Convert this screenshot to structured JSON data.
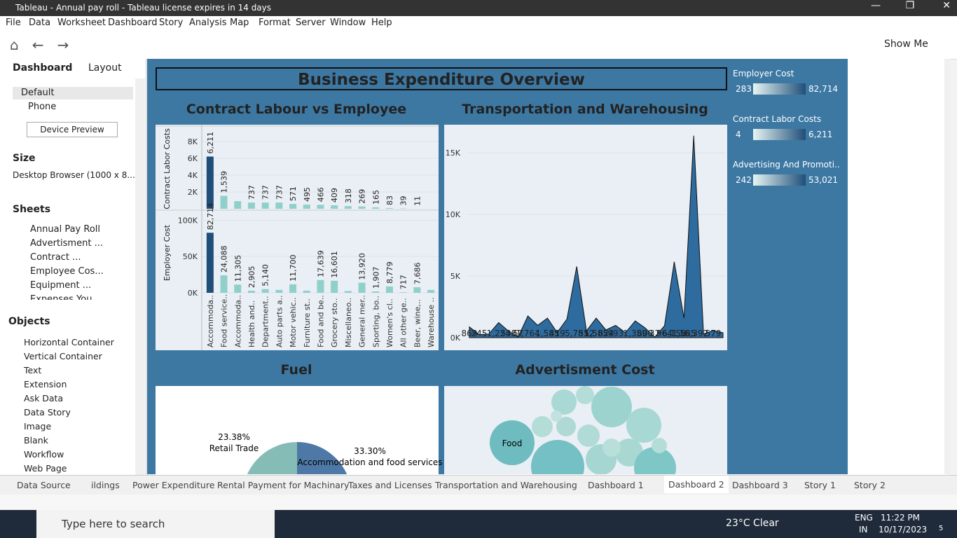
{
  "window_title": "Tableau - Annual pay roll - Tableau license expires in 14 days",
  "menu": [
    "File",
    "Data",
    "Worksheet",
    "Dashboard",
    "Story",
    "Analysis",
    "Map",
    "Format",
    "Server",
    "Window",
    "Help"
  ],
  "toolbar": {
    "show_me": "Show Me"
  },
  "left_panel": {
    "tabs": [
      "Dashboard",
      "Layout"
    ],
    "devices": [
      "Default",
      "Phone"
    ],
    "device_preview": "Device Preview",
    "size_heading": "Size",
    "size_value": "Desktop Browser (1000 x 8...",
    "sheets_heading": "Sheets",
    "sheets": [
      "Annual Pay Roll",
      "Advertisment ...",
      "Contract ...",
      "Employee Cos...",
      "Equipment ...",
      "Expenses You..."
    ],
    "objects_heading": "Objects",
    "objects": [
      "Horizontal Container",
      "Vertical Container",
      "Text",
      "Extension",
      "Ask Data",
      "Data Story",
      "Image",
      "Blank",
      "Workflow",
      "Web Page"
    ]
  },
  "dashboard": {
    "title": "Business Expenditure Overview",
    "legends": [
      {
        "title": "Employer Cost",
        "min": "283",
        "max": "82,714"
      },
      {
        "title": "Contract Labor Costs",
        "min": "4",
        "max": "6,211"
      },
      {
        "title": "Advertising And Promoti..",
        "min": "242",
        "max": "53,021"
      }
    ],
    "contract_employee": {
      "type": "bar",
      "title": "Contract Labour vs Employee",
      "categories": [
        "Accommoda..",
        "Food service..",
        "Accommoda..",
        "Health and..",
        "Department..",
        "Auto parts a..",
        "Motor vehic..",
        "Furniture st..",
        "Food and be..",
        "Grocery sto..",
        "Miscellaneo..",
        "General mer..",
        "Sporting, bo..",
        "Women's cl..",
        "All other ge..",
        "Beer, wine,..",
        "Warehouse .."
      ],
      "color": "#8fd0ca",
      "highlight_color": "#1f4e79",
      "panels": [
        {
          "y_label": "Contract Labor Costs",
          "ylim": [
            0,
            9500
          ],
          "yticks": [
            {
              "value": 2000,
              "label": "2K"
            },
            {
              "value": 4000,
              "label": "4K"
            },
            {
              "value": 6000,
              "label": "6K"
            },
            {
              "value": 8000,
              "label": "8K"
            }
          ],
          "values": [
            6211,
            1539,
            900,
            737,
            737,
            737,
            571,
            495,
            466,
            409,
            318,
            269,
            165,
            83,
            39,
            11,
            5
          ],
          "value_labels": [
            "6,211",
            "1,539",
            null,
            "737",
            "737",
            "737",
            "571",
            "495",
            "466",
            "409",
            "318",
            "269",
            "165",
            "83",
            "39",
            "11",
            null
          ]
        },
        {
          "y_label": "Employer Cost",
          "ylim": [
            0,
            110000
          ],
          "yticks": [
            {
              "value": 0,
              "label": "0K"
            },
            {
              "value": 50000,
              "label": "50K"
            },
            {
              "value": 100000,
              "label": "100K"
            }
          ],
          "values": [
            82714,
            24088,
            11305,
            2905,
            5140,
            4000,
            11700,
            3000,
            17639,
            16601,
            2500,
            13920,
            1907,
            8779,
            717,
            7686,
            4000
          ],
          "value_labels": [
            "82,714",
            "24,088",
            "11,305",
            "2,905",
            "5,140",
            null,
            "11,700",
            null,
            "17,639",
            "16,601",
            null,
            "13,920",
            "1,907",
            "8,779",
            "717",
            "7,686",
            null
          ]
        }
      ]
    },
    "transportation": {
      "type": "area",
      "title": "Transportation  and Warehousing",
      "color": "#2e6b9e",
      "ylim": [
        0,
        17000
      ],
      "yticks": [
        {
          "value": 0,
          "label": "0K"
        },
        {
          "value": 5000,
          "label": "5K"
        },
        {
          "value": 10000,
          "label": "10K"
        },
        {
          "value": 15000,
          "label": "15K"
        }
      ],
      "values": [
        869,
        245,
        300,
        1224,
        538,
        57,
        1764,
        1000,
        1585,
        419,
        1500,
        5781,
        552,
        1585,
        624,
        993,
        400,
        1359,
        800,
        37,
        964,
        6158,
        1585,
        16392,
        300,
        579,
        400
      ],
      "value_labels": [
        "869",
        "245",
        null,
        "1,224",
        "538",
        "57",
        "1,764",
        null,
        "1,585",
        "419",
        null,
        "5,781",
        "552",
        "1,585",
        "624",
        "993",
        null,
        "1,359",
        "800",
        "37",
        "964",
        "6,158",
        "1,585",
        "16,392",
        null,
        "579",
        null
      ]
    },
    "fuel": {
      "type": "pie",
      "title": "Fuel",
      "categories": [
        "Retail Trade",
        "Accommodation and food services"
      ],
      "values": [
        23.38,
        33.3
      ],
      "value_labels": [
        "23.38%",
        "33.30%"
      ],
      "colors": [
        "#86bcb6",
        "#4e79a7"
      ]
    },
    "advertisment": {
      "title": "Advertisment Cost",
      "label": "Food"
    }
  },
  "bottom_tabs": [
    "Data Source",
    "ildings",
    "Power Expenditure",
    "Rental Payment for Machinary",
    "Taxes and Licenses",
    "Transportation and Warehousing",
    "Dashboard 1",
    "Dashboard 2",
    "Dashboard 3",
    "Story 1",
    "Story 2"
  ],
  "taskbar": {
    "search": "Type here to search",
    "weather": "23°C  Clear",
    "lang": "ENG",
    "region": "IN",
    "time": "11:22 PM",
    "date": "10/17/2023",
    "notifications": "5"
  }
}
